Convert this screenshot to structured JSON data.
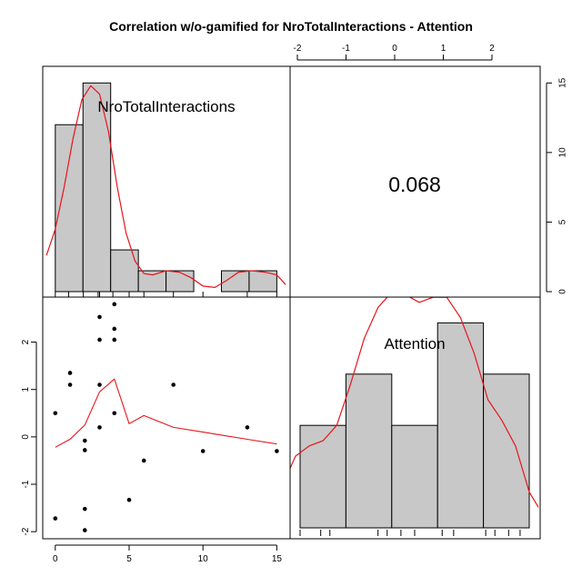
{
  "title": "Correlation w/o-gamified for NroTotalInteractions - Attention",
  "variables": [
    "NroTotalInteractions",
    "Attention"
  ],
  "correlation_label": "0.068",
  "colors": {
    "histogram_fill": "#c8c8c8",
    "density_line": "#e8141c",
    "points": "#000000",
    "axes": "#000000"
  },
  "chart_data": [
    {
      "type": "bar",
      "name": "hist-NroTotalInteractions",
      "x_breaks": [
        0,
        1.875,
        3.75,
        5.625,
        7.5,
        9.375,
        11.25,
        13.125,
        15
      ],
      "values": [
        12,
        15,
        3,
        1.5,
        1.5,
        0,
        1.5,
        1.5
      ],
      "ylim": [
        0,
        16
      ],
      "right_axis_ticks": [
        "0",
        "5",
        "10",
        "15"
      ],
      "density": [
        [
          -0.6,
          2.6
        ],
        [
          0,
          4.5
        ],
        [
          0.6,
          7.5
        ],
        [
          1.2,
          11
        ],
        [
          1.8,
          13.8
        ],
        [
          2.4,
          14.8
        ],
        [
          3.0,
          14.2
        ],
        [
          3.6,
          11.5
        ],
        [
          4.2,
          7.5
        ],
        [
          4.8,
          4.2
        ],
        [
          5.4,
          2.2
        ],
        [
          6.0,
          1.3
        ],
        [
          6.6,
          1.2
        ],
        [
          7.5,
          1.5
        ],
        [
          8.4,
          1.4
        ],
        [
          9.2,
          1.0
        ],
        [
          10.0,
          0.4
        ],
        [
          10.8,
          0.3
        ],
        [
          11.6,
          0.8
        ],
        [
          12.4,
          1.4
        ],
        [
          13.3,
          1.5
        ],
        [
          14.2,
          1.4
        ],
        [
          15.0,
          1.2
        ],
        [
          15.6,
          0.5
        ]
      ],
      "rug": [
        0,
        0.9,
        1.9,
        2.9,
        3.0,
        3.9,
        5.0,
        6.0,
        8.0,
        10.0,
        13.0,
        15.0
      ]
    },
    {
      "type": "bar",
      "name": "hist-Attention",
      "x_breaks": [
        -2.0,
        -1.0,
        0.0,
        1.0,
        2.0,
        3.0
      ],
      "values": [
        2,
        3,
        2,
        4,
        3
      ],
      "ylim": [
        0,
        4.45
      ],
      "density": [
        [
          -2.3,
          1.0
        ],
        [
          -2.1,
          1.4
        ],
        [
          -1.8,
          1.6
        ],
        [
          -1.5,
          1.7
        ],
        [
          -1.2,
          2.0
        ],
        [
          -0.9,
          2.8
        ],
        [
          -0.6,
          3.7
        ],
        [
          -0.3,
          4.3
        ],
        [
          0.0,
          4.6
        ],
        [
          0.3,
          4.55
        ],
        [
          0.6,
          4.4
        ],
        [
          0.9,
          4.5
        ],
        [
          1.2,
          4.5
        ],
        [
          1.5,
          4.1
        ],
        [
          1.8,
          3.4
        ],
        [
          2.1,
          2.5
        ],
        [
          2.4,
          2.1
        ],
        [
          2.7,
          1.6
        ],
        [
          3.0,
          0.7
        ],
        [
          3.2,
          0.4
        ]
      ],
      "rug": [
        -2.0,
        -1.55,
        -1.35,
        -0.3,
        -0.1,
        0.2,
        0.5,
        1.1,
        1.35,
        2.05,
        2.25,
        2.55,
        2.8
      ]
    },
    {
      "type": "scatter",
      "name": "scatter-Attention-vs-NroTotalInteractions",
      "x_ticks": [
        "0",
        "5",
        "10",
        "15"
      ],
      "y_ticks": [
        "-2",
        "-1",
        "0",
        "1",
        "2"
      ],
      "xlim": [
        -0.85,
        15.9
      ],
      "ylim": [
        -2.15,
        2.95
      ],
      "points": [
        [
          0,
          0.5
        ],
        [
          0,
          -1.72
        ],
        [
          1,
          1.35
        ],
        [
          1,
          1.1
        ],
        [
          2,
          -0.08
        ],
        [
          2,
          -0.28
        ],
        [
          2,
          -1.52
        ],
        [
          2,
          -1.97
        ],
        [
          3,
          2.53
        ],
        [
          3,
          2.05
        ],
        [
          3,
          1.1
        ],
        [
          3,
          0.2
        ],
        [
          4,
          2.8
        ],
        [
          4,
          2.28
        ],
        [
          4,
          2.05
        ],
        [
          4,
          0.5
        ],
        [
          5,
          -1.33
        ],
        [
          6,
          -0.5
        ],
        [
          8,
          1.1
        ],
        [
          10,
          -0.3
        ],
        [
          13,
          0.2
        ],
        [
          15,
          -0.3
        ]
      ],
      "smoother": [
        [
          0,
          -0.22
        ],
        [
          1,
          -0.05
        ],
        [
          2,
          0.25
        ],
        [
          3,
          0.95
        ],
        [
          4,
          1.22
        ],
        [
          5,
          0.28
        ],
        [
          6,
          0.45
        ],
        [
          8,
          0.2
        ],
        [
          10,
          0.1
        ],
        [
          13,
          -0.05
        ],
        [
          15,
          -0.15
        ]
      ]
    }
  ],
  "top_axis_ticks": [
    "-2",
    "-1",
    "0",
    "1",
    "2"
  ]
}
